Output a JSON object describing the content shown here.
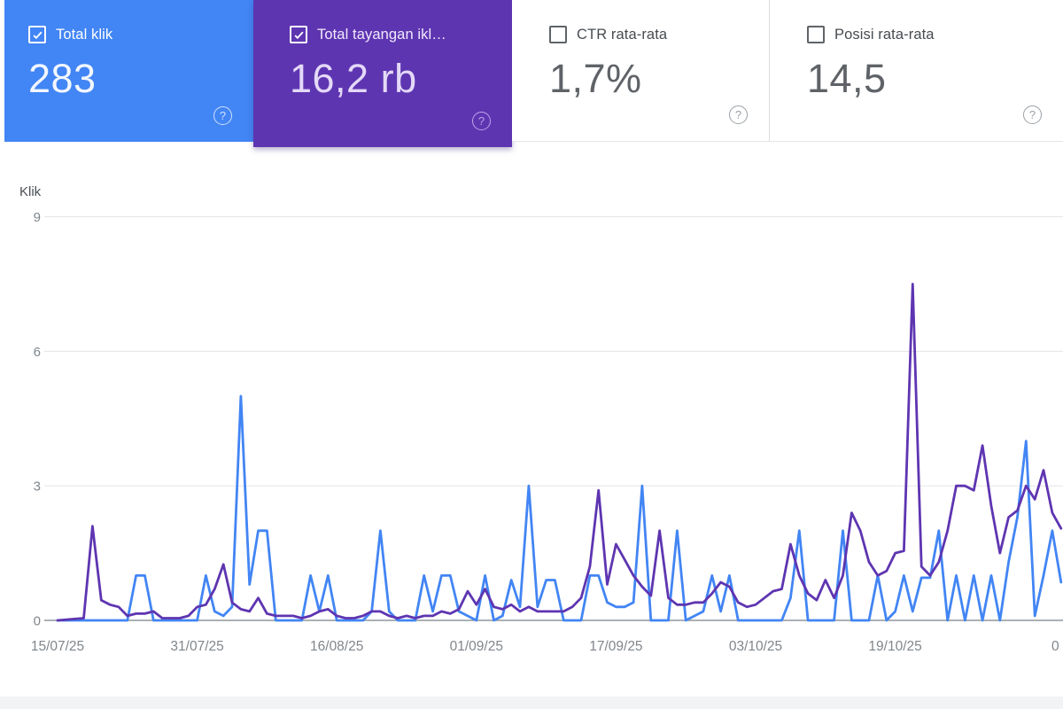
{
  "cards": [
    {
      "label": "Total klik",
      "value": "283",
      "checked": true
    },
    {
      "label": "Total tayangan ikl…",
      "value": "16,2 rb",
      "checked": true
    },
    {
      "label": "CTR rata-rata",
      "value": "1,7%",
      "checked": false
    },
    {
      "label": "Posisi rata-rata",
      "value": "14,5",
      "checked": false
    }
  ],
  "icons": {
    "help": "?",
    "check": "checkmark"
  },
  "chart_data": {
    "type": "line",
    "title": "",
    "y_axis": {
      "title": "Klik",
      "ticks": [
        0,
        3,
        6,
        9
      ],
      "range": [
        0,
        9
      ],
      "grid": true
    },
    "x_axis": {
      "labels": [
        "15/07/25",
        "31/07/25",
        "16/08/25",
        "01/09/25",
        "17/09/25",
        "03/10/25",
        "19/10/25"
      ],
      "partial_last_label": "0",
      "label_interval_days": 16
    },
    "legend_position": "none",
    "series": [
      {
        "name": "Total klik",
        "color": "#4285f4",
        "points": [
          [
            0,
            0
          ],
          [
            8,
            0
          ],
          [
            9,
            1
          ],
          [
            10,
            1
          ],
          [
            11,
            0
          ],
          [
            16,
            0
          ],
          [
            17,
            1
          ],
          [
            18,
            0.2
          ],
          [
            19,
            0.1
          ],
          [
            20,
            0.3
          ],
          [
            21,
            5
          ],
          [
            22,
            0.8
          ],
          [
            23,
            2
          ],
          [
            24,
            2
          ],
          [
            25,
            0
          ],
          [
            28,
            0
          ],
          [
            29,
            1
          ],
          [
            30,
            0.2
          ],
          [
            31,
            1
          ],
          [
            32,
            0
          ],
          [
            35,
            0
          ],
          [
            36,
            0.2
          ],
          [
            37,
            2
          ],
          [
            38,
            0.2
          ],
          [
            39,
            0
          ],
          [
            41,
            0
          ],
          [
            42,
            1
          ],
          [
            43,
            0.2
          ],
          [
            44,
            1
          ],
          [
            45,
            1
          ],
          [
            46,
            0.2
          ],
          [
            48,
            0
          ],
          [
            49,
            1
          ],
          [
            50,
            0
          ],
          [
            51,
            0.1
          ],
          [
            52,
            0.9
          ],
          [
            53,
            0.3
          ],
          [
            54,
            3
          ],
          [
            55,
            0.3
          ],
          [
            56,
            0.9
          ],
          [
            57,
            0.9
          ],
          [
            58,
            0
          ],
          [
            60,
            0
          ],
          [
            61,
            1
          ],
          [
            62,
            1
          ],
          [
            63,
            0.4
          ],
          [
            64,
            0.3
          ],
          [
            65,
            0.3
          ],
          [
            66,
            0.4
          ],
          [
            67,
            3
          ],
          [
            68,
            0
          ],
          [
            70,
            0
          ],
          [
            71,
            2
          ],
          [
            72,
            0
          ],
          [
            74,
            0.2
          ],
          [
            75,
            1
          ],
          [
            76,
            0.2
          ],
          [
            77,
            1
          ],
          [
            78,
            0
          ],
          [
            83,
            0
          ],
          [
            84,
            0.5
          ],
          [
            85,
            2
          ],
          [
            86,
            0
          ],
          [
            89,
            0
          ],
          [
            90,
            2
          ],
          [
            91,
            0
          ],
          [
            93,
            0
          ],
          [
            94,
            1
          ],
          [
            95,
            0
          ],
          [
            96,
            0.2
          ],
          [
            97,
            1
          ],
          [
            98,
            0.2
          ],
          [
            99,
            0.95
          ],
          [
            100,
            0.95
          ],
          [
            101,
            2
          ],
          [
            102,
            0
          ],
          [
            103,
            1
          ],
          [
            104,
            0
          ],
          [
            105,
            1
          ],
          [
            106,
            0
          ],
          [
            107,
            1
          ],
          [
            108,
            0
          ],
          [
            109,
            1.3
          ],
          [
            110,
            2.3
          ],
          [
            111,
            4
          ],
          [
            112,
            0.1
          ],
          [
            113,
            1
          ],
          [
            114,
            2
          ],
          [
            115,
            0.85
          ]
        ]
      },
      {
        "name": "Total tayangan iklan",
        "color": "#5e35b1",
        "points": [
          [
            0,
            0
          ],
          [
            3,
            0.05
          ],
          [
            4,
            2.1
          ],
          [
            5,
            0.45
          ],
          [
            6,
            0.35
          ],
          [
            7,
            0.3
          ],
          [
            8,
            0.1
          ],
          [
            9,
            0.15
          ],
          [
            10,
            0.15
          ],
          [
            11,
            0.2
          ],
          [
            12,
            0.05
          ],
          [
            14,
            0.05
          ],
          [
            15,
            0.1
          ],
          [
            16,
            0.3
          ],
          [
            17,
            0.35
          ],
          [
            18,
            0.7
          ],
          [
            19,
            1.25
          ],
          [
            20,
            0.4
          ],
          [
            21,
            0.25
          ],
          [
            22,
            0.2
          ],
          [
            23,
            0.5
          ],
          [
            24,
            0.15
          ],
          [
            25,
            0.1
          ],
          [
            27,
            0.1
          ],
          [
            28,
            0.05
          ],
          [
            29,
            0.1
          ],
          [
            30,
            0.2
          ],
          [
            31,
            0.25
          ],
          [
            32,
            0.1
          ],
          [
            33,
            0.05
          ],
          [
            34,
            0.05
          ],
          [
            35,
            0.1
          ],
          [
            36,
            0.2
          ],
          [
            37,
            0.2
          ],
          [
            38,
            0.1
          ],
          [
            39,
            0.05
          ],
          [
            40,
            0.1
          ],
          [
            41,
            0.05
          ],
          [
            42,
            0.1
          ],
          [
            43,
            0.1
          ],
          [
            44,
            0.2
          ],
          [
            45,
            0.15
          ],
          [
            46,
            0.25
          ],
          [
            47,
            0.65
          ],
          [
            48,
            0.35
          ],
          [
            49,
            0.7
          ],
          [
            50,
            0.3
          ],
          [
            51,
            0.25
          ],
          [
            52,
            0.35
          ],
          [
            53,
            0.2
          ],
          [
            54,
            0.3
          ],
          [
            55,
            0.2
          ],
          [
            57,
            0.2
          ],
          [
            58,
            0.2
          ],
          [
            59,
            0.3
          ],
          [
            60,
            0.5
          ],
          [
            61,
            1.2
          ],
          [
            62,
            2.9
          ],
          [
            63,
            0.8
          ],
          [
            64,
            1.7
          ],
          [
            65,
            1.35
          ],
          [
            66,
            1
          ],
          [
            67,
            0.75
          ],
          [
            68,
            0.55
          ],
          [
            69,
            2
          ],
          [
            70,
            0.5
          ],
          [
            71,
            0.35
          ],
          [
            72,
            0.35
          ],
          [
            73,
            0.4
          ],
          [
            74,
            0.4
          ],
          [
            75,
            0.6
          ],
          [
            76,
            0.85
          ],
          [
            77,
            0.75
          ],
          [
            78,
            0.4
          ],
          [
            79,
            0.3
          ],
          [
            80,
            0.35
          ],
          [
            81,
            0.5
          ],
          [
            82,
            0.65
          ],
          [
            83,
            0.7
          ],
          [
            84,
            1.7
          ],
          [
            85,
            1
          ],
          [
            86,
            0.6
          ],
          [
            87,
            0.45
          ],
          [
            88,
            0.9
          ],
          [
            89,
            0.5
          ],
          [
            90,
            1
          ],
          [
            91,
            2.4
          ],
          [
            92,
            2
          ],
          [
            93,
            1.3
          ],
          [
            94,
            1
          ],
          [
            95,
            1.1
          ],
          [
            96,
            1.5
          ],
          [
            97,
            1.55
          ],
          [
            98,
            7.5
          ],
          [
            99,
            1.2
          ],
          [
            100,
            1
          ],
          [
            101,
            1.3
          ],
          [
            102,
            2
          ],
          [
            103,
            3
          ],
          [
            104,
            3
          ],
          [
            105,
            2.9
          ],
          [
            106,
            3.9
          ],
          [
            107,
            2.55
          ],
          [
            108,
            1.5
          ],
          [
            109,
            2.3
          ],
          [
            110,
            2.45
          ],
          [
            111,
            3
          ],
          [
            112,
            2.7
          ],
          [
            113,
            3.35
          ],
          [
            114,
            2.4
          ],
          [
            115,
            2.05
          ]
        ]
      }
    ]
  }
}
